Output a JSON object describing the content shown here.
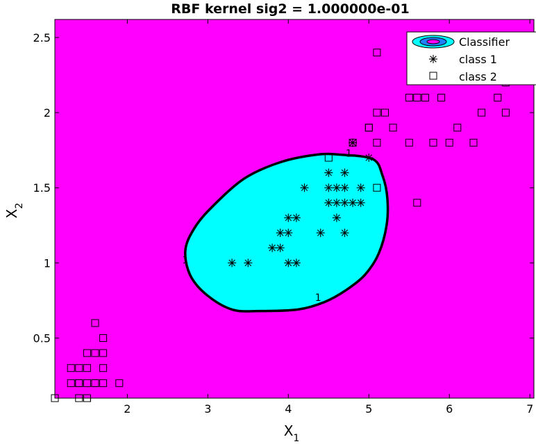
{
  "chart_data": {
    "type": "scatter",
    "title": "RBF kernel sig2 =  1.000000e-01",
    "xlabel": {
      "base": "X",
      "sub": "1"
    },
    "ylabel": {
      "base": "X",
      "sub": "2"
    },
    "xlim": [
      1.1,
      7.05
    ],
    "ylim": [
      0.1,
      2.62
    ],
    "xticks": [
      2,
      3,
      4,
      5,
      6,
      7
    ],
    "yticks": [
      0.5,
      1,
      1.5,
      2,
      2.5
    ],
    "xtick_labels": [
      "2",
      "3",
      "4",
      "5",
      "6",
      "7"
    ],
    "ytick_labels": [
      "0.5",
      "1",
      "1.5",
      "2",
      "2.5"
    ],
    "grid": false,
    "legend_position": "top-right",
    "colors": {
      "background_region": "#ff00ff",
      "classifier_region": "#00ffff",
      "boundary": "#000000"
    },
    "legend": [
      {
        "label": "Classifier",
        "marker": "classifier-ellipses-icon"
      },
      {
        "label": "class 1",
        "marker": "asterisk"
      },
      {
        "label": "class 2",
        "marker": "square"
      }
    ],
    "boundary_label": "1",
    "boundary_label_positions": [
      {
        "x": 4.75,
        "y": 1.73
      },
      {
        "x": 2.72,
        "y": 1.02
      },
      {
        "x": 4.37,
        "y": 0.77
      }
    ],
    "decision_boundary": [
      [
        4.35,
        1.72
      ],
      [
        4.65,
        1.72
      ],
      [
        5.05,
        1.69
      ],
      [
        5.17,
        1.58
      ],
      [
        5.23,
        1.43
      ],
      [
        5.22,
        1.25
      ],
      [
        5.12,
        1.06
      ],
      [
        4.95,
        0.92
      ],
      [
        4.72,
        0.82
      ],
      [
        4.45,
        0.74
      ],
      [
        4.12,
        0.69
      ],
      [
        3.65,
        0.68
      ],
      [
        3.3,
        0.69
      ],
      [
        2.98,
        0.79
      ],
      [
        2.78,
        0.92
      ],
      [
        2.72,
        1.08
      ],
      [
        2.82,
        1.22
      ],
      [
        3.03,
        1.36
      ],
      [
        3.45,
        1.56
      ],
      [
        3.9,
        1.67
      ]
    ],
    "series": [
      {
        "name": "class 1",
        "marker": "asterisk",
        "x": [
          3.3,
          3.5,
          3.8,
          3.9,
          3.9,
          4.0,
          4.0,
          4.0,
          4.1,
          4.1,
          4.2,
          4.4,
          4.5,
          4.5,
          4.5,
          4.6,
          4.6,
          4.6,
          4.7,
          4.7,
          4.7,
          4.7,
          4.8,
          4.8,
          4.9,
          4.9,
          5.0
        ],
        "y": [
          1.0,
          1.0,
          1.1,
          1.1,
          1.2,
          1.0,
          1.2,
          1.3,
          1.0,
          1.3,
          1.5,
          1.2,
          1.4,
          1.5,
          1.6,
          1.3,
          1.4,
          1.5,
          1.2,
          1.4,
          1.5,
          1.6,
          1.4,
          1.8,
          1.4,
          1.5,
          1.7
        ]
      },
      {
        "name": "class 2",
        "marker": "square",
        "x": [
          1.1,
          1.3,
          1.3,
          1.4,
          1.4,
          1.4,
          1.4,
          1.5,
          1.5,
          1.5,
          1.5,
          1.5,
          1.6,
          1.6,
          1.6,
          1.6,
          1.7,
          1.7,
          1.7,
          1.7,
          1.9,
          4.5,
          4.8,
          5.0,
          5.0,
          5.1,
          5.1,
          5.1,
          5.1,
          5.2,
          5.3,
          5.5,
          5.5,
          5.6,
          5.6,
          5.7,
          5.8,
          5.9,
          6.0,
          6.1,
          6.3,
          6.4,
          6.6,
          6.7,
          6.7
        ],
        "y": [
          0.1,
          0.2,
          0.3,
          0.1,
          0.2,
          0.3,
          0.2,
          0.1,
          0.2,
          0.3,
          0.4,
          0.1,
          0.2,
          0.4,
          0.6,
          0.2,
          0.2,
          0.3,
          0.4,
          0.5,
          0.2,
          1.7,
          1.8,
          1.9,
          1.9,
          1.5,
          1.8,
          2.0,
          2.4,
          2.0,
          1.9,
          1.8,
          2.1,
          1.4,
          2.1,
          2.1,
          1.8,
          2.1,
          1.8,
          1.9,
          1.8,
          2.0,
          2.1,
          2.0,
          2.2
        ]
      }
    ]
  }
}
